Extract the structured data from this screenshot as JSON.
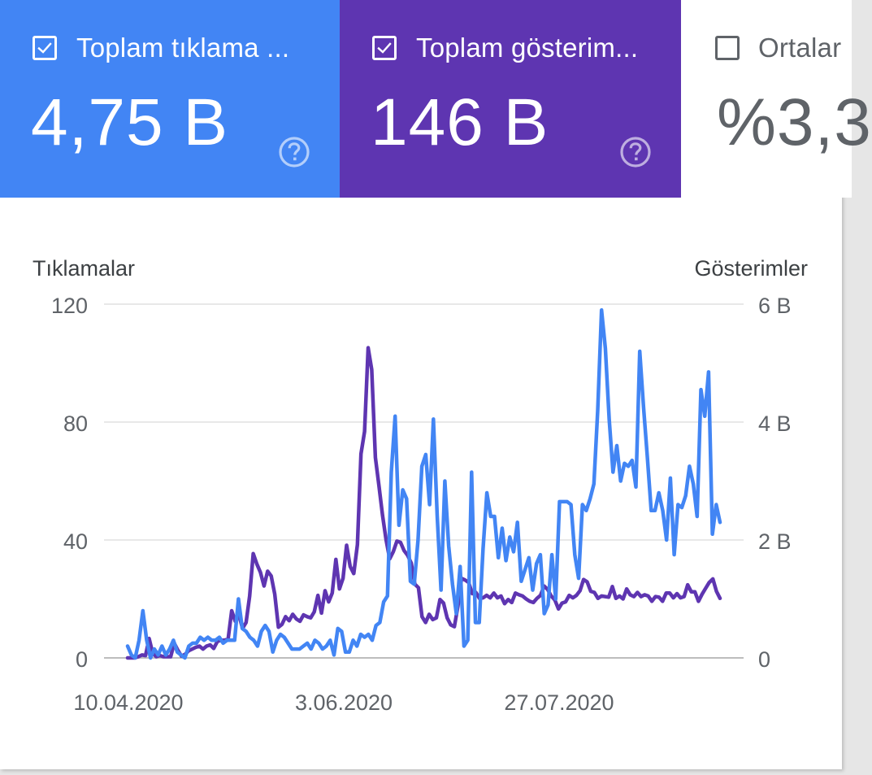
{
  "tiles": {
    "clicks": {
      "label": "Toplam tıklama ...",
      "value": "4,75 B",
      "checked": true,
      "color": "#4285f4"
    },
    "impressions": {
      "label": "Toplam gösterim...",
      "value": "146 B",
      "checked": true,
      "color": "#5e35b1"
    },
    "ctr": {
      "label": "Ortalar",
      "value": "%3,3",
      "checked": false
    }
  },
  "icons": {
    "help": "help-circle-icon",
    "check": "checkmark-icon"
  },
  "chart_data": {
    "type": "line",
    "left_axis_label": "Tıklamalar",
    "right_axis_label": "Gösterimler",
    "left_ticks": [
      "0",
      "40",
      "80",
      "120"
    ],
    "right_ticks": [
      "0",
      "2 B",
      "4 B",
      "6 B"
    ],
    "ylim_left": [
      0,
      120
    ],
    "ylim_right": [
      0,
      6000
    ],
    "x_tick_labels": [
      "10.04.2020",
      "3.06.2020",
      "27.07.2020"
    ],
    "grid": true,
    "series": [
      {
        "name": "Tıklamalar",
        "axis": "left",
        "color": "#4285f4",
        "values": [
          4,
          1,
          0,
          6,
          16,
          6,
          0,
          3,
          1,
          4,
          1,
          3,
          6,
          2,
          1,
          0,
          4,
          5,
          5,
          7,
          6,
          7,
          6,
          6,
          7,
          5,
          6,
          6,
          6,
          20,
          10,
          9,
          7,
          6,
          4,
          9,
          11,
          9,
          2,
          6,
          8,
          7,
          5,
          3,
          3,
          3,
          4,
          5,
          3,
          6,
          5,
          3,
          4,
          6,
          1,
          10,
          9,
          2,
          2,
          6,
          4,
          8,
          7,
          8,
          6,
          11,
          12,
          19,
          21,
          63,
          82,
          45,
          57,
          54,
          26,
          25,
          40,
          65,
          69,
          52,
          81,
          48,
          23,
          60,
          38,
          25,
          15,
          31,
          4,
          6,
          63,
          12,
          12,
          37,
          56,
          48,
          48,
          34,
          44,
          33,
          41,
          36,
          46,
          26,
          30,
          34,
          23,
          32,
          35,
          15,
          18,
          35,
          20,
          53,
          53,
          53,
          52,
          35,
          27,
          52,
          50,
          54,
          59,
          84,
          118,
          105,
          81,
          63,
          72,
          60,
          66,
          65,
          67,
          58,
          104,
          85,
          68,
          50,
          50,
          56,
          50,
          40,
          61,
          35,
          52,
          51,
          55,
          65,
          59,
          48,
          91,
          82,
          97,
          42,
          52,
          46
        ]
      },
      {
        "name": "Gösterimler",
        "axis": "right",
        "color": "#5e35b1",
        "values": [
          0,
          0,
          0,
          20,
          50,
          40,
          330,
          80,
          20,
          40,
          20,
          20,
          20,
          250,
          130,
          30,
          60,
          120,
          150,
          180,
          200,
          150,
          200,
          220,
          160,
          280,
          300,
          300,
          320,
          800,
          620,
          730,
          500,
          600,
          1050,
          1770,
          1590,
          1450,
          1220,
          1470,
          1390,
          1080,
          520,
          570,
          700,
          630,
          740,
          660,
          620,
          730,
          700,
          680,
          780,
          1060,
          760,
          1140,
          950,
          1100,
          1670,
          1170,
          1350,
          1910,
          1550,
          1430,
          1920,
          3460,
          3840,
          5260,
          4890,
          3400,
          2920,
          2420,
          2000,
          1680,
          1800,
          1980,
          1960,
          1820,
          1740,
          1610,
          1250,
          1190,
          700,
          600,
          740,
          650,
          680,
          990,
          930,
          680,
          560,
          530,
          880,
          1350,
          1320,
          1280,
          1090,
          1110,
          1010,
          1020,
          1060,
          1020,
          1100,
          1020,
          1050,
          920,
          990,
          940,
          1100,
          1070,
          1050,
          1000,
          960,
          940,
          1010,
          1060,
          1220,
          1160,
          1050,
          980,
          830,
          930,
          950,
          1060,
          1020,
          1060,
          1140,
          1330,
          1290,
          1130,
          1110,
          1010,
          1050,
          1040,
          1030,
          1210,
          1010,
          1050,
          1000,
          1170,
          1070,
          1040,
          1110,
          1040,
          1070,
          1050,
          960,
          1040,
          1030,
          960,
          1100,
          1100,
          1020,
          1090,
          1020,
          1040,
          1240,
          1120,
          1120,
          960,
          1080,
          1180,
          1280,
          1340,
          1130,
          1010
        ]
      }
    ]
  }
}
